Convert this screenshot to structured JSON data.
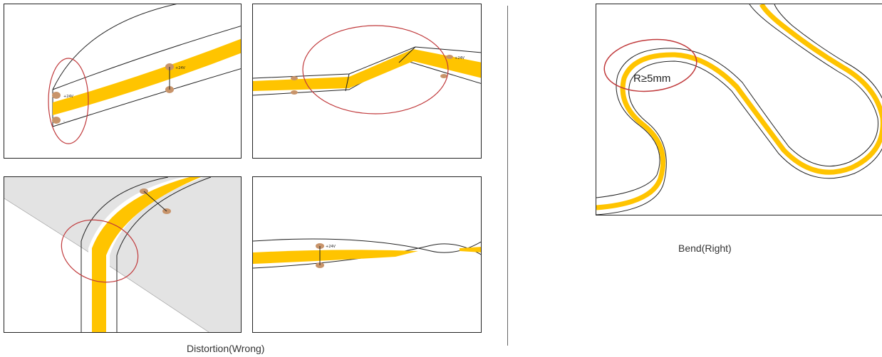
{
  "captions": {
    "wrong": "Distortion(Wrong)",
    "right": "Bend(Right)"
  },
  "labels": {
    "radius": "R≥5mm",
    "plus_24v": "+24V",
    "minus": "-"
  },
  "colors": {
    "strip_fill": "#ffc400",
    "pad": "#c8946a",
    "circle": "#c0393b",
    "shadow": "#e3e3e3",
    "outline": "#222222"
  }
}
